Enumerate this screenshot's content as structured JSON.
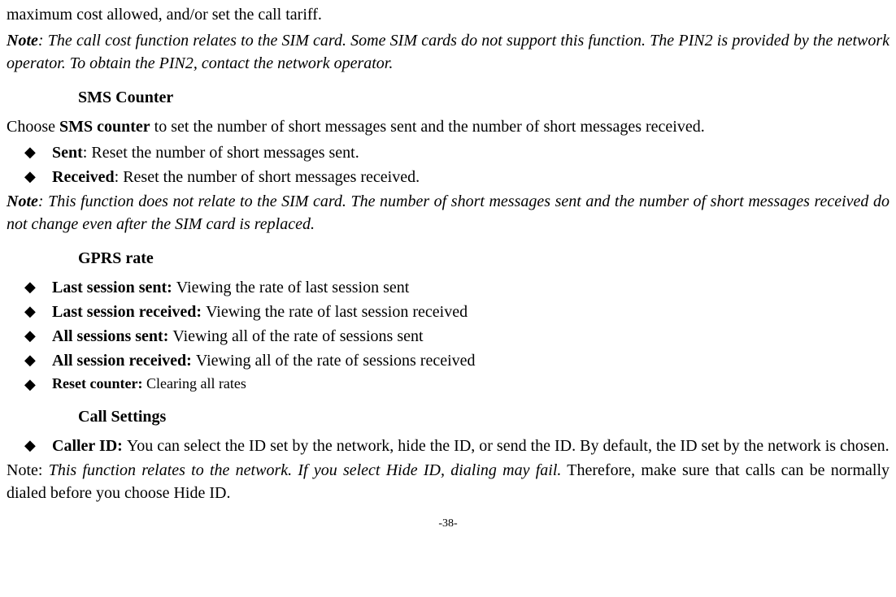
{
  "intro": {
    "fragment": "maximum cost allowed, and/or set the call tariff."
  },
  "note1": {
    "label": "Note",
    "text": ": The call cost function relates to the SIM card. Some SIM cards do not support this function. The PIN2 is provided by the network operator. To obtain the PIN2, contact the network operator."
  },
  "sms": {
    "heading": "SMS Counter",
    "intro_pre": "Choose ",
    "intro_bold": "SMS counter",
    "intro_post": " to set the number of short messages sent and the number of short messages received.",
    "items": [
      {
        "label": "Sent",
        "desc": ": Reset the number of short messages sent."
      },
      {
        "label": "Received",
        "desc": ": Reset the number of short messages received."
      }
    ]
  },
  "note2": {
    "label": "Note",
    "text": ": This function does not relate to the SIM card. The number of short messages sent and the number of short messages received do not change even after the SIM card is replaced."
  },
  "gprs": {
    "heading": "GPRS rate",
    "items": [
      {
        "label": "Last session sent: ",
        "desc": "Viewing the rate of last session sent"
      },
      {
        "label": "Last session received: ",
        "desc": "Viewing the rate of last session received"
      },
      {
        "label": "All sessions sent: ",
        "desc": "Viewing all of the rate of sessions sent"
      },
      {
        "label": "All session received: ",
        "desc": "Viewing all of the rate of sessions received"
      },
      {
        "label": "Reset counter: ",
        "desc": "Clearing all rates"
      }
    ]
  },
  "call": {
    "heading": "Call Settings",
    "item_label": "Caller ID: ",
    "item_desc": "You can select the ID set by the network, hide the ID, or send the ID. By default, the ID set by the network is chosen."
  },
  "note3": {
    "pre": "Note: ",
    "italic": "This function relates to the network. If you select Hide ID, dialing may fail.",
    "post": " Therefore, make sure that calls can be normally dialed before you choose Hide ID."
  },
  "page_number": "-38-"
}
